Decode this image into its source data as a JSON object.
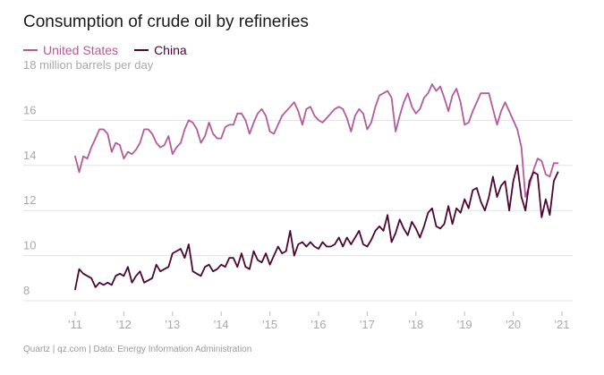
{
  "colors": {
    "us": "#b35b9d",
    "china": "#4b0633",
    "grid": "#e3e3e3",
    "tick": "#a9a9a9"
  },
  "footer": {
    "source": "Quartz | qz.com | Data: Energy Information Administration"
  },
  "chart_data": {
    "type": "line",
    "title": "Consumption of crude oil by refineries",
    "ylabel": "million barrels per day",
    "ylim": [
      8,
      18
    ],
    "yticks": [
      8,
      10,
      12,
      14,
      16,
      18
    ],
    "ytick_labels": [
      "8",
      "10",
      "12",
      "14",
      "16",
      "18"
    ],
    "xlim": [
      2011,
      2021
    ],
    "xticks": [
      2011,
      2012,
      2013,
      2014,
      2015,
      2016,
      2017,
      2018,
      2019,
      2020,
      2021
    ],
    "xtick_labels": [
      "'11",
      "'12",
      "'13",
      "'14",
      "'15",
      "'16",
      "'17",
      "'18",
      "'19",
      "'20",
      "'21"
    ],
    "grid": true,
    "legend_position": "top-left",
    "series": [
      {
        "name": "United States",
        "color": "#b35b9d",
        "x_start": 2011,
        "x_step_months": 1,
        "values": [
          14.4,
          13.7,
          14.4,
          14.3,
          14.8,
          15.2,
          15.6,
          15.6,
          15.4,
          14.6,
          15.0,
          14.9,
          14.3,
          14.6,
          14.5,
          14.7,
          15.0,
          15.6,
          15.6,
          15.4,
          15.0,
          14.8,
          14.9,
          15.3,
          14.5,
          14.8,
          15.0,
          15.6,
          16.0,
          15.9,
          15.6,
          15.0,
          15.3,
          15.9,
          15.4,
          15.2,
          15.2,
          15.7,
          15.8,
          15.8,
          16.3,
          16.3,
          16.0,
          15.4,
          15.9,
          16.3,
          16.5,
          16.2,
          15.5,
          15.4,
          15.8,
          16.2,
          16.4,
          16.6,
          16.8,
          16.4,
          15.8,
          16.5,
          16.6,
          16.2,
          16.0,
          15.9,
          16.1,
          16.3,
          16.5,
          16.6,
          16.5,
          16.1,
          15.5,
          16.2,
          16.5,
          16.3,
          15.6,
          15.9,
          16.6,
          17.1,
          17.2,
          17.3,
          17.0,
          15.5,
          16.2,
          16.8,
          17.2,
          16.6,
          16.3,
          16.5,
          17.0,
          17.2,
          17.6,
          17.3,
          17.5,
          17.0,
          16.4,
          17.1,
          17.4,
          16.8,
          15.8,
          15.9,
          16.4,
          16.8,
          17.2,
          17.2,
          17.2,
          16.5,
          15.8,
          16.4,
          16.8,
          16.4,
          16.0,
          15.6,
          14.8,
          12.6,
          13.1,
          13.8,
          14.3,
          14.2,
          13.6,
          13.5,
          14.1,
          14.1
        ]
      },
      {
        "name": "China",
        "color": "#4b0633",
        "x_start": 2011,
        "x_step_months": 1,
        "values": [
          8.5,
          9.4,
          9.2,
          9.1,
          9.0,
          8.6,
          8.8,
          8.7,
          8.8,
          8.7,
          9.1,
          9.2,
          9.1,
          9.5,
          8.8,
          9.1,
          9.3,
          8.8,
          8.9,
          9.0,
          9.6,
          9.3,
          9.4,
          9.5,
          10.1,
          10.2,
          10.3,
          9.9,
          10.5,
          9.3,
          9.2,
          9.1,
          9.5,
          9.6,
          9.3,
          9.4,
          9.6,
          9.5,
          9.9,
          9.9,
          9.5,
          10.1,
          9.5,
          9.4,
          10.2,
          9.8,
          9.7,
          10.1,
          9.6,
          10.0,
          10.4,
          10.1,
          10.2,
          11.1,
          10.0,
          10.5,
          10.6,
          10.4,
          10.6,
          10.4,
          10.3,
          10.6,
          10.4,
          10.4,
          10.5,
          10.8,
          10.4,
          10.8,
          10.5,
          10.8,
          11.1,
          10.5,
          10.4,
          10.7,
          11.1,
          11.3,
          11.1,
          11.8,
          10.6,
          11.0,
          11.6,
          11.2,
          10.9,
          11.5,
          11.2,
          10.8,
          11.3,
          11.9,
          12.1,
          11.3,
          11.2,
          11.4,
          12.2,
          11.4,
          12.1,
          11.9,
          12.5,
          12.1,
          12.9,
          13.0,
          12.4,
          12.0,
          12.6,
          13.5,
          12.6,
          13.1,
          13.3,
          12.0,
          13.3,
          14.0,
          12.6,
          12.0,
          13.3,
          13.7,
          13.6,
          11.7,
          12.5,
          11.8,
          13.3,
          13.7
        ]
      }
    ]
  }
}
